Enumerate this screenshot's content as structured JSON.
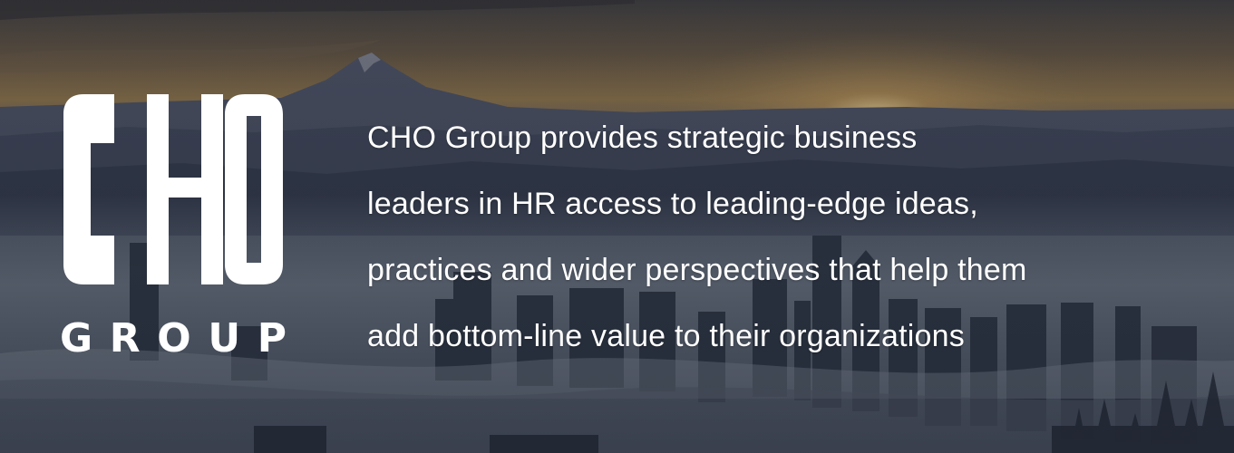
{
  "logo": {
    "text": "CHO",
    "letters": [
      "G",
      "R",
      "O",
      "U",
      "P"
    ],
    "color": "#ffffff"
  },
  "tagline": {
    "lines": [
      "CHO Group provides strategic business",
      "leaders in HR access to leading-edge ideas,",
      "practices and wider perspectives that help them",
      "add bottom-line value to their organizations"
    ]
  },
  "colors": {
    "sky_top": "#3c3b3d",
    "sky_glow": "#8e7448",
    "fog": "#6d7783",
    "city": "#2b3340",
    "text": "#ffffff"
  }
}
